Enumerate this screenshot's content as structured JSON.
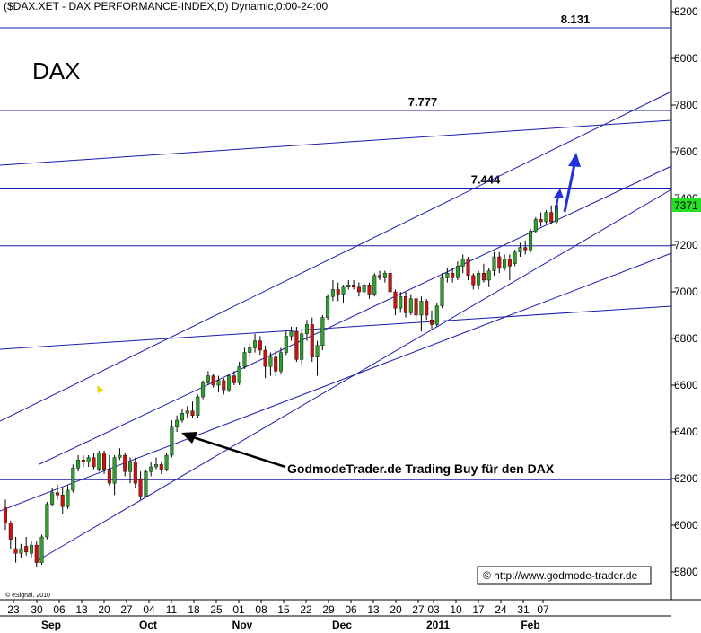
{
  "chart_data": {
    "type": "candlestick",
    "title": "($DAX.XET - DAX PERFORMANCE-INDEX,D) Dynamic,0:00-24:00",
    "symbol_label": "DAX",
    "copyright": "© eSignal, 2010",
    "source_note": "© http://www.godmode-trader.de",
    "ylim": [
      5600,
      8300
    ],
    "y_ticks": [
      "8200",
      "8000",
      "7800",
      "7600",
      "7400",
      "7200",
      "7000",
      "6800",
      "6600",
      "6400",
      "6200",
      "6000",
      "5800"
    ],
    "current_price_label": "7371",
    "x_ticks": [
      "23",
      "30",
      "06",
      "13",
      "20",
      "27",
      "04",
      "11",
      "18",
      "25",
      "01",
      "08",
      "15",
      "22",
      "29",
      "06",
      "13",
      "20",
      "27",
      "03",
      "10",
      "17",
      "24",
      "31",
      "07"
    ],
    "month_labels": [
      "Sep",
      "Oct",
      "Nov",
      "Dec",
      "2011",
      "Feb"
    ],
    "horizontal_levels": [
      {
        "value": 8131,
        "label": "8.131"
      },
      {
        "value": 7777,
        "label": "7.777"
      },
      {
        "value": 7444,
        "label": "7.444"
      },
      {
        "value": 7197,
        "label": ""
      },
      {
        "value": 6195,
        "label": ""
      }
    ],
    "annotation": "GodmodeTrader.de Trading Buy für den DAX",
    "candles": [
      {
        "o": 6075,
        "h": 6110,
        "l": 5980,
        "c": 6010
      },
      {
        "o": 6010,
        "h": 6020,
        "l": 5900,
        "c": 5940
      },
      {
        "o": 5900,
        "h": 5950,
        "l": 5840,
        "c": 5880
      },
      {
        "o": 5880,
        "h": 5920,
        "l": 5860,
        "c": 5900
      },
      {
        "o": 5910,
        "h": 5950,
        "l": 5870,
        "c": 5885
      },
      {
        "o": 5880,
        "h": 5930,
        "l": 5860,
        "c": 5915
      },
      {
        "o": 5915,
        "h": 5930,
        "l": 5820,
        "c": 5840
      },
      {
        "o": 5840,
        "h": 5960,
        "l": 5830,
        "c": 5950
      },
      {
        "o": 5950,
        "h": 6100,
        "l": 5940,
        "c": 6090
      },
      {
        "o": 6090,
        "h": 6160,
        "l": 6080,
        "c": 6140
      },
      {
        "o": 6140,
        "h": 6175,
        "l": 6110,
        "c": 6130
      },
      {
        "o": 6130,
        "h": 6160,
        "l": 6050,
        "c": 6080
      },
      {
        "o": 6080,
        "h": 6170,
        "l": 6070,
        "c": 6150
      },
      {
        "o": 6150,
        "h": 6260,
        "l": 6140,
        "c": 6245
      },
      {
        "o": 6245,
        "h": 6300,
        "l": 6230,
        "c": 6280
      },
      {
        "o": 6280,
        "h": 6300,
        "l": 6250,
        "c": 6270
      },
      {
        "o": 6270,
        "h": 6300,
        "l": 6250,
        "c": 6290
      },
      {
        "o": 6290,
        "h": 6310,
        "l": 6240,
        "c": 6250
      },
      {
        "o": 6240,
        "h": 6320,
        "l": 6230,
        "c": 6310
      },
      {
        "o": 6310,
        "h": 6320,
        "l": 6220,
        "c": 6240
      },
      {
        "o": 6240,
        "h": 6300,
        "l": 6170,
        "c": 6180
      },
      {
        "o": 6180,
        "h": 6300,
        "l": 6130,
        "c": 6290
      },
      {
        "o": 6290,
        "h": 6330,
        "l": 6280,
        "c": 6300
      },
      {
        "o": 6300,
        "h": 6310,
        "l": 6210,
        "c": 6230
      },
      {
        "o": 6230,
        "h": 6290,
        "l": 6180,
        "c": 6270
      },
      {
        "o": 6270,
        "h": 6290,
        "l": 6160,
        "c": 6180
      },
      {
        "o": 6200,
        "h": 6230,
        "l": 6110,
        "c": 6125
      },
      {
        "o": 6125,
        "h": 6240,
        "l": 6120,
        "c": 6230
      },
      {
        "o": 6230,
        "h": 6270,
        "l": 6210,
        "c": 6250
      },
      {
        "o": 6250,
        "h": 6290,
        "l": 6240,
        "c": 6260
      },
      {
        "o": 6260,
        "h": 6270,
        "l": 6220,
        "c": 6240
      },
      {
        "o": 6240,
        "h": 6310,
        "l": 6230,
        "c": 6300
      },
      {
        "o": 6300,
        "h": 6450,
        "l": 6290,
        "c": 6420
      },
      {
        "o": 6420,
        "h": 6470,
        "l": 6400,
        "c": 6450
      },
      {
        "o": 6450,
        "h": 6500,
        "l": 6440,
        "c": 6480
      },
      {
        "o": 6480,
        "h": 6510,
        "l": 6460,
        "c": 6490
      },
      {
        "o": 6490,
        "h": 6530,
        "l": 6460,
        "c": 6470
      },
      {
        "o": 6470,
        "h": 6560,
        "l": 6460,
        "c": 6550
      },
      {
        "o": 6550,
        "h": 6620,
        "l": 6540,
        "c": 6610
      },
      {
        "o": 6610,
        "h": 6660,
        "l": 6600,
        "c": 6640
      },
      {
        "o": 6640,
        "h": 6650,
        "l": 6590,
        "c": 6600
      },
      {
        "o": 6600,
        "h": 6640,
        "l": 6570,
        "c": 6620
      },
      {
        "o": 6620,
        "h": 6630,
        "l": 6560,
        "c": 6580
      },
      {
        "o": 6580,
        "h": 6650,
        "l": 6570,
        "c": 6640
      },
      {
        "o": 6640,
        "h": 6660,
        "l": 6600,
        "c": 6610
      },
      {
        "o": 6610,
        "h": 6700,
        "l": 6600,
        "c": 6680
      },
      {
        "o": 6680,
        "h": 6760,
        "l": 6670,
        "c": 6740
      },
      {
        "o": 6740,
        "h": 6780,
        "l": 6720,
        "c": 6760
      },
      {
        "o": 6760,
        "h": 6820,
        "l": 6740,
        "c": 6790
      },
      {
        "o": 6790,
        "h": 6810,
        "l": 6730,
        "c": 6750
      },
      {
        "o": 6750,
        "h": 6770,
        "l": 6630,
        "c": 6680
      },
      {
        "o": 6680,
        "h": 6740,
        "l": 6640,
        "c": 6720
      },
      {
        "o": 6720,
        "h": 6750,
        "l": 6640,
        "c": 6660
      },
      {
        "o": 6660,
        "h": 6760,
        "l": 6650,
        "c": 6740
      },
      {
        "o": 6740,
        "h": 6830,
        "l": 6730,
        "c": 6810
      },
      {
        "o": 6810,
        "h": 6850,
        "l": 6790,
        "c": 6830
      },
      {
        "o": 6830,
        "h": 6850,
        "l": 6700,
        "c": 6710
      },
      {
        "o": 6710,
        "h": 6840,
        "l": 6690,
        "c": 6820
      },
      {
        "o": 6820,
        "h": 6880,
        "l": 6790,
        "c": 6860
      },
      {
        "o": 6860,
        "h": 6890,
        "l": 6700,
        "c": 6720
      },
      {
        "o": 6720,
        "h": 6790,
        "l": 6640,
        "c": 6770
      },
      {
        "o": 6770,
        "h": 6900,
        "l": 6750,
        "c": 6890
      },
      {
        "o": 6890,
        "h": 6990,
        "l": 6880,
        "c": 6980
      },
      {
        "o": 6980,
        "h": 7050,
        "l": 6960,
        "c": 7010
      },
      {
        "o": 7010,
        "h": 7040,
        "l": 6960,
        "c": 6990
      },
      {
        "o": 6990,
        "h": 7030,
        "l": 6950,
        "c": 7020
      },
      {
        "o": 7020,
        "h": 7050,
        "l": 7010,
        "c": 7030
      },
      {
        "o": 7030,
        "h": 7050,
        "l": 7010,
        "c": 7020
      },
      {
        "o": 7020,
        "h": 7040,
        "l": 6980,
        "c": 7000
      },
      {
        "o": 7000,
        "h": 7040,
        "l": 6990,
        "c": 7030
      },
      {
        "o": 7030,
        "h": 7040,
        "l": 6970,
        "c": 6990
      },
      {
        "o": 6990,
        "h": 7080,
        "l": 6980,
        "c": 7070
      },
      {
        "o": 7070,
        "h": 7090,
        "l": 7050,
        "c": 7060
      },
      {
        "o": 7060,
        "h": 7090,
        "l": 7040,
        "c": 7080
      },
      {
        "o": 7080,
        "h": 7100,
        "l": 6990,
        "c": 7000
      },
      {
        "o": 7000,
        "h": 7010,
        "l": 6900,
        "c": 6930
      },
      {
        "o": 6930,
        "h": 7000,
        "l": 6910,
        "c": 6980
      },
      {
        "o": 6980,
        "h": 7000,
        "l": 6890,
        "c": 6910
      },
      {
        "o": 6910,
        "h": 6990,
        "l": 6900,
        "c": 6970
      },
      {
        "o": 6970,
        "h": 6980,
        "l": 6880,
        "c": 6900
      },
      {
        "o": 6900,
        "h": 6980,
        "l": 6830,
        "c": 6960
      },
      {
        "o": 6960,
        "h": 6970,
        "l": 6880,
        "c": 6900
      },
      {
        "o": 6880,
        "h": 6920,
        "l": 6840,
        "c": 6860
      },
      {
        "o": 6860,
        "h": 6950,
        "l": 6850,
        "c": 6940
      },
      {
        "o": 6940,
        "h": 7080,
        "l": 6930,
        "c": 7060
      },
      {
        "o": 7060,
        "h": 7100,
        "l": 7040,
        "c": 7080
      },
      {
        "o": 7080,
        "h": 7100,
        "l": 7040,
        "c": 7060
      },
      {
        "o": 7060,
        "h": 7130,
        "l": 7050,
        "c": 7110
      },
      {
        "o": 7110,
        "h": 7160,
        "l": 7080,
        "c": 7140
      },
      {
        "o": 7140,
        "h": 7150,
        "l": 7050,
        "c": 7070
      },
      {
        "o": 7070,
        "h": 7080,
        "l": 7010,
        "c": 7030
      },
      {
        "o": 7030,
        "h": 7090,
        "l": 7010,
        "c": 7080
      },
      {
        "o": 7080,
        "h": 7120,
        "l": 7040,
        "c": 7050
      },
      {
        "o": 7050,
        "h": 7100,
        "l": 7020,
        "c": 7090
      },
      {
        "o": 7090,
        "h": 7170,
        "l": 7070,
        "c": 7150
      },
      {
        "o": 7150,
        "h": 7170,
        "l": 7080,
        "c": 7100
      },
      {
        "o": 7100,
        "h": 7160,
        "l": 7090,
        "c": 7140
      },
      {
        "o": 7140,
        "h": 7160,
        "l": 7050,
        "c": 7110
      },
      {
        "o": 7120,
        "h": 7180,
        "l": 7110,
        "c": 7170
      },
      {
        "o": 7170,
        "h": 7210,
        "l": 7150,
        "c": 7190
      },
      {
        "o": 7190,
        "h": 7220,
        "l": 7160,
        "c": 7180
      },
      {
        "o": 7180,
        "h": 7270,
        "l": 7170,
        "c": 7260
      },
      {
        "o": 7260,
        "h": 7320,
        "l": 7250,
        "c": 7310
      },
      {
        "o": 7310,
        "h": 7340,
        "l": 7280,
        "c": 7300
      },
      {
        "o": 7300,
        "h": 7350,
        "l": 7290,
        "c": 7340
      },
      {
        "o": 7340,
        "h": 7370,
        "l": 7290,
        "c": 7300
      },
      {
        "o": 7300,
        "h": 7380,
        "l": 7290,
        "c": 7371
      }
    ]
  },
  "colors": {
    "up_body": "#2ea02e",
    "down_body": "#cc1111",
    "line": "#1a1ab0",
    "arrow_blue": "#2030e0",
    "marker_yellow": "#f2d400",
    "price_tag": "#22e022"
  },
  "icons": {
    "buy_arrow": "left-pointing-arrow",
    "projection": "up-arrow",
    "marker": "yellow-triangle"
  }
}
